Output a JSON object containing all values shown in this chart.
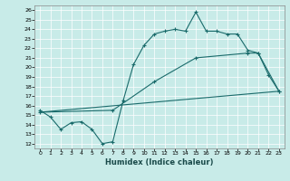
{
  "title": "",
  "xlabel": "Humidex (Indice chaleur)",
  "xlim": [
    -0.5,
    23.5
  ],
  "ylim": [
    11.5,
    26.5
  ],
  "xticks": [
    0,
    1,
    2,
    3,
    4,
    5,
    6,
    7,
    8,
    9,
    10,
    11,
    12,
    13,
    14,
    15,
    16,
    17,
    18,
    19,
    20,
    21,
    22,
    23
  ],
  "yticks": [
    12,
    13,
    14,
    15,
    16,
    17,
    18,
    19,
    20,
    21,
    22,
    23,
    24,
    25,
    26
  ],
  "bg_color": "#c8ebe8",
  "line_color": "#1a6b6b",
  "line1_x": [
    0,
    1,
    2,
    3,
    4,
    5,
    6,
    7,
    8,
    9,
    10,
    11,
    12,
    13,
    14,
    15,
    16,
    17,
    18,
    19,
    20,
    21,
    22,
    23
  ],
  "line1_y": [
    15.5,
    14.8,
    13.5,
    14.2,
    14.3,
    13.5,
    12.0,
    12.2,
    16.5,
    20.3,
    22.3,
    23.5,
    23.8,
    24.0,
    23.8,
    25.8,
    23.8,
    23.8,
    23.5,
    23.5,
    21.8,
    21.5,
    19.2,
    17.5
  ],
  "line2_x": [
    0,
    23
  ],
  "line2_y": [
    15.3,
    17.5
  ],
  "line3_x": [
    0,
    7,
    11,
    15,
    20,
    21,
    23
  ],
  "line3_y": [
    15.3,
    15.5,
    18.5,
    21.0,
    21.5,
    21.5,
    17.5
  ]
}
